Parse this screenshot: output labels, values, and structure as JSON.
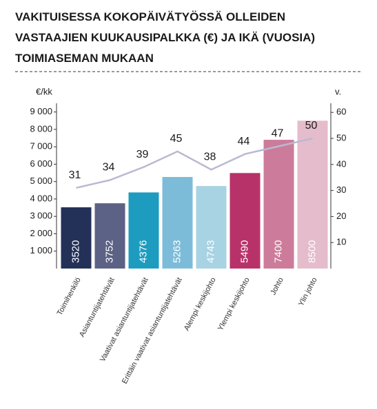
{
  "chart_data": {
    "type": "bar",
    "title": [
      "VAKITUISESSA KOKOPÄIVÄTYÖSSÄ OLLEIDEN",
      "VASTAAJIEN KUUKAUSIPALKKA (€) JA IKÄ (VUOSIA)",
      "TOIMIASEMAN MUKAAN"
    ],
    "y_label": "€/kk",
    "y2_label": "v.",
    "categories": [
      "Toimihenkilö",
      "Asiantuntijatehtävät",
      "Vaativat asiantuntijatehtävät",
      "Erittäin vaativat asiantuntijatehtävät",
      "Alempi keskijohto",
      "Ylempi keskijohto",
      "Johto",
      "Ylin johto"
    ],
    "series": [
      {
        "type": "bar",
        "values": [
          3520,
          3752,
          4376,
          5263,
          4743,
          5490,
          7400,
          8500
        ],
        "colors": [
          "#233159",
          "#5c6285",
          "#1e9cc0",
          "#7dbcd9",
          "#a8d3e3",
          "#b8326a",
          "#cc7c9a",
          "#e5bccb"
        ]
      },
      {
        "type": "line",
        "axis": "y2",
        "color": "#b9b9d2",
        "values": [
          31,
          34,
          39,
          45,
          38,
          44,
          47,
          50
        ]
      }
    ],
    "ylim": [
      0,
      9500
    ],
    "yticks": [
      {
        "value": 1000,
        "label": "1 000"
      },
      {
        "value": 2000,
        "label": "2 000"
      },
      {
        "value": 3000,
        "label": "3 000"
      },
      {
        "value": 4000,
        "label": "4 000"
      },
      {
        "value": 5000,
        "label": "5 000"
      },
      {
        "value": 6000,
        "label": "6 000"
      },
      {
        "value": 7000,
        "label": "7 000"
      },
      {
        "value": 8000,
        "label": "8 000"
      },
      {
        "value": 9000,
        "label": "9 000"
      }
    ],
    "y2lim": [
      0,
      63.5
    ],
    "y2ticks": [
      10,
      20,
      30,
      40,
      50,
      60
    ]
  }
}
